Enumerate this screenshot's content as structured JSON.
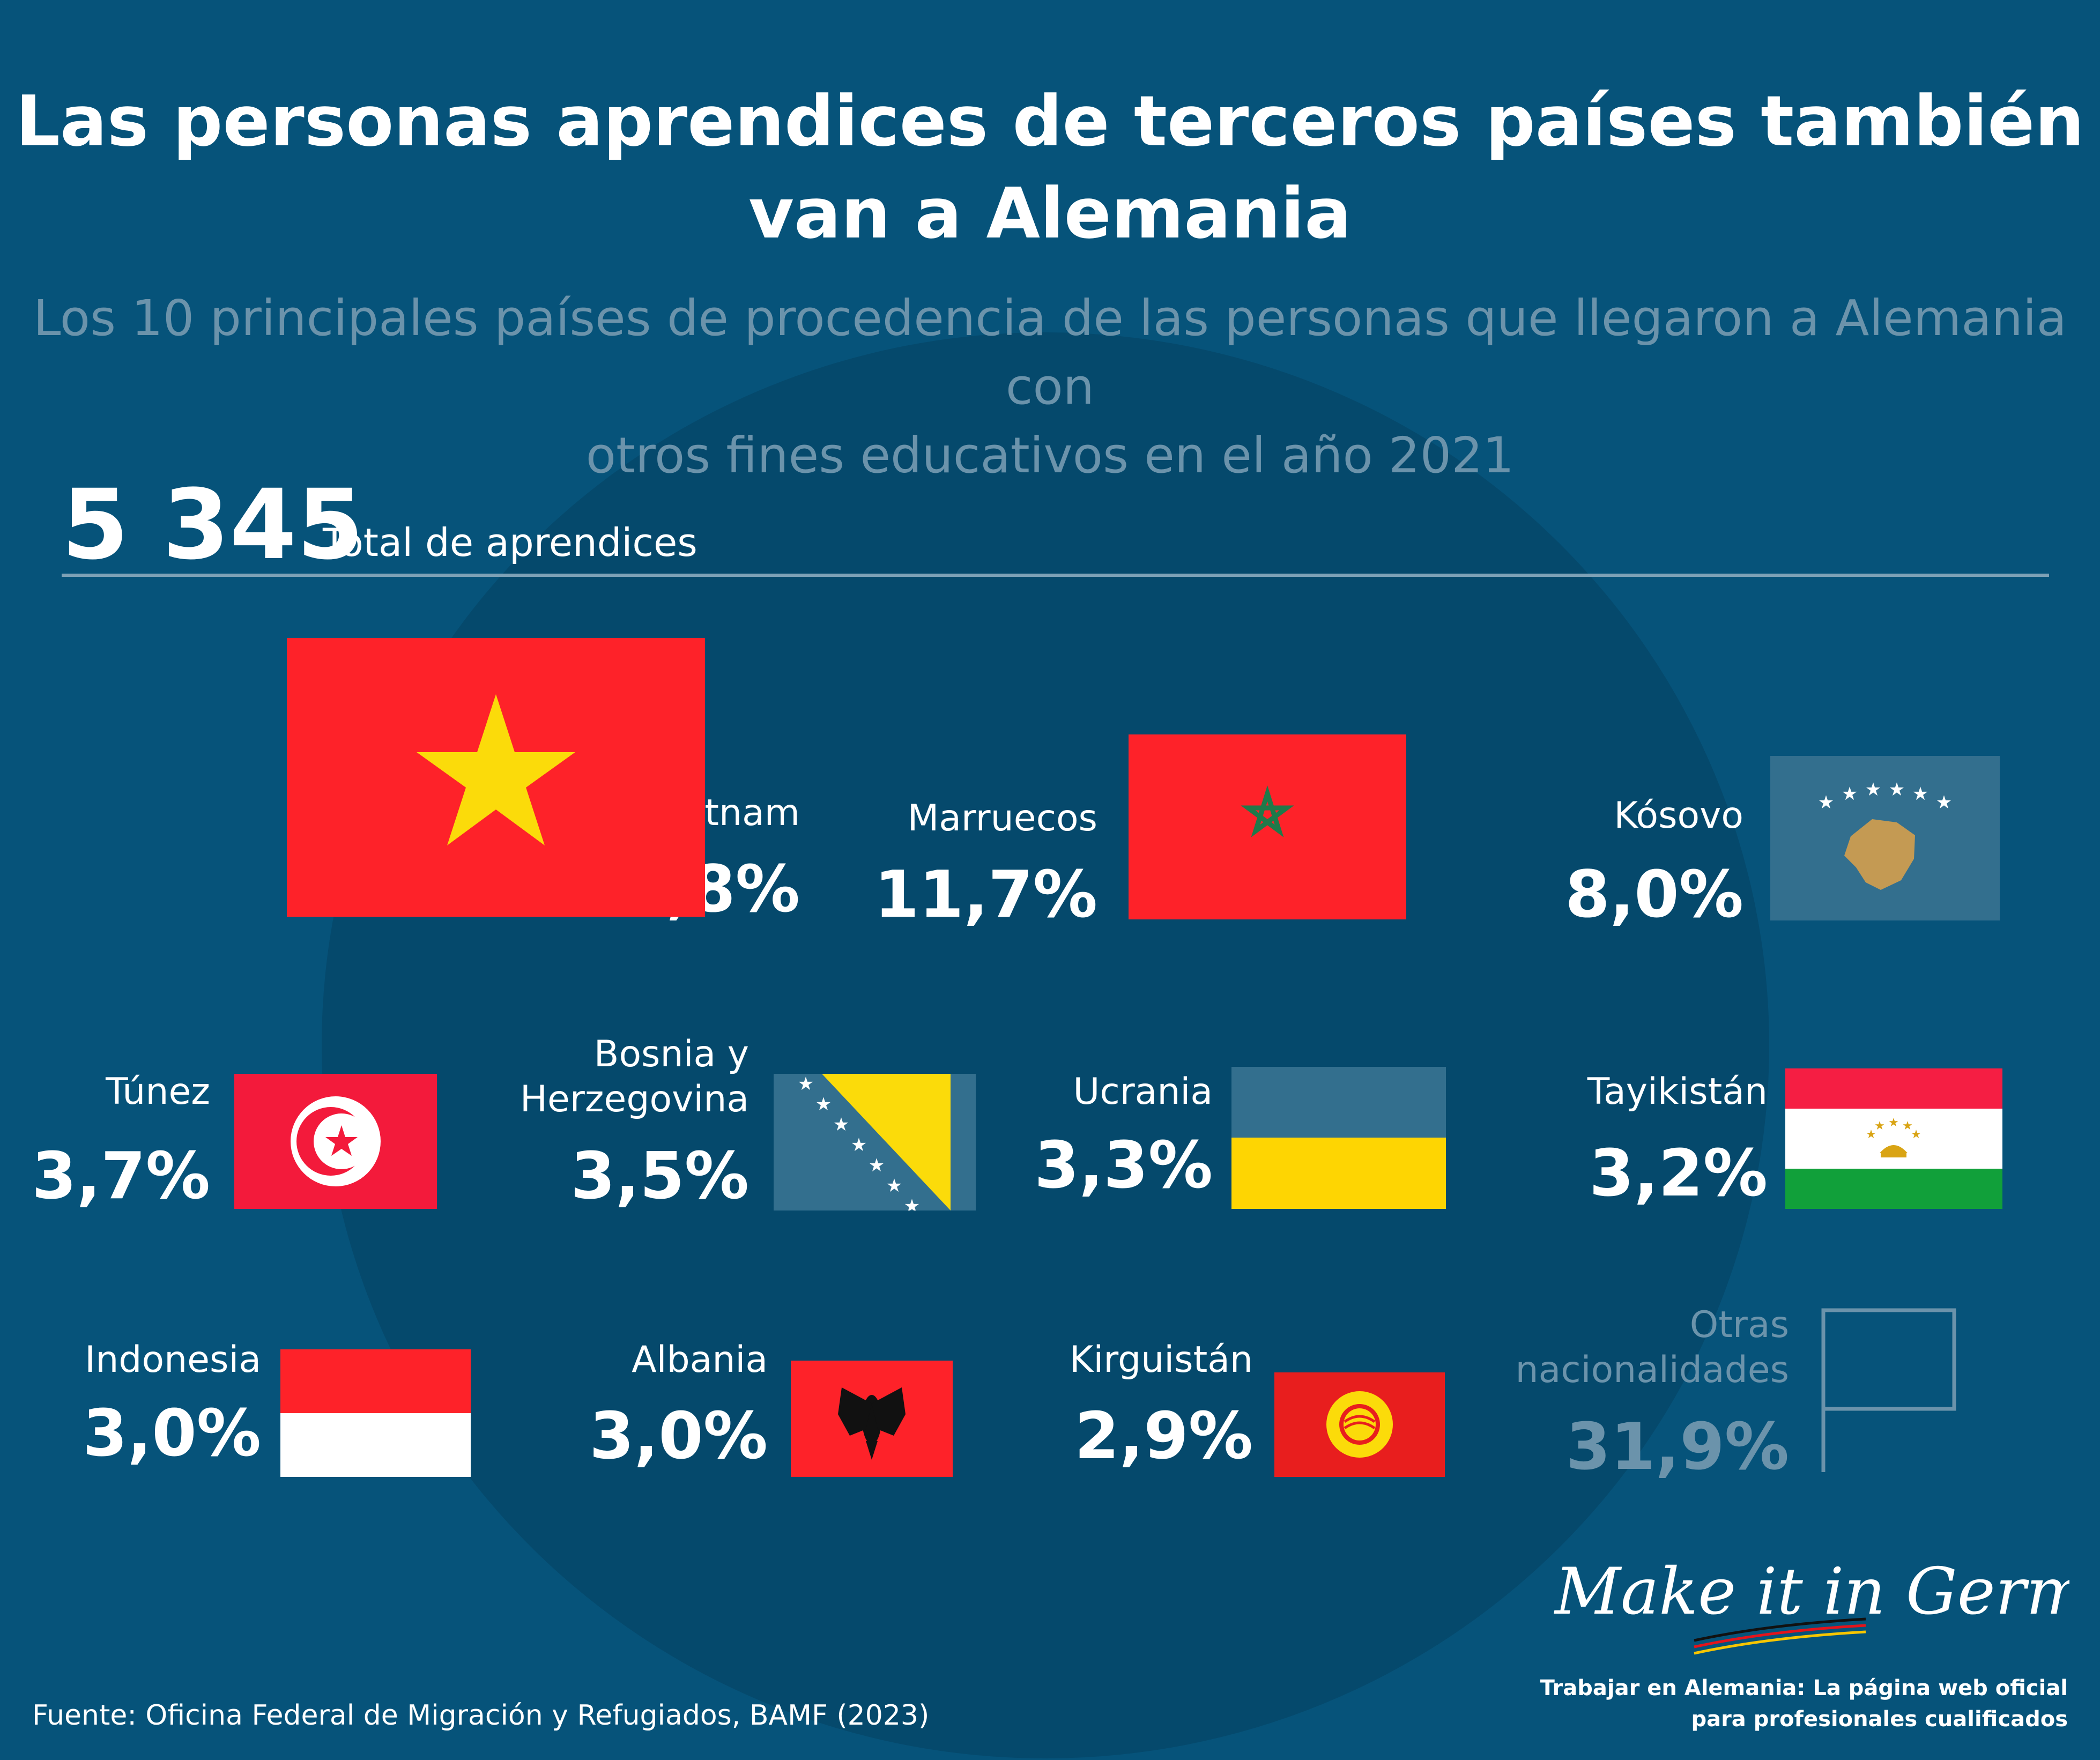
{
  "title_line1": "Las personas aprendices de terceros países también",
  "title_line2": "van a Alemania",
  "subtitle_line1": "Los 10 principales países de procedencia de las personas que llegaron a Alemania con",
  "subtitle_line2": "otros fines educativos en el año 2021",
  "total": {
    "value": "5 345",
    "label": "Total de aprendices"
  },
  "countries": [
    {
      "name": "Vietnam",
      "percent": "25,8%"
    },
    {
      "name": "Marruecos",
      "percent": "11,7%"
    },
    {
      "name": "Kósovo",
      "percent": "8,0%"
    },
    {
      "name": "Túnez",
      "percent": "3,7%"
    },
    {
      "name_line1": "Bosnia y",
      "name_line2": "Herzegovina",
      "percent": "3,5%"
    },
    {
      "name": "Ucrania",
      "percent": "3,3%"
    },
    {
      "name": "Tayikistán",
      "percent": "3,2%"
    },
    {
      "name": "Indonesia",
      "percent": "3,0%"
    },
    {
      "name": "Albania",
      "percent": "3,0%"
    },
    {
      "name": "Kirguistán",
      "percent": "2,9%"
    }
  ],
  "others": {
    "name_line1": "Otras",
    "name_line2": "nacionalidades",
    "percent": "31,9%"
  },
  "chart_data": {
    "type": "table",
    "title": "Las personas aprendices de terceros países también van a Alemania",
    "subtitle": "Los 10 principales países de procedencia de las personas que llegaron a Alemania con otros fines educativos en el año 2021",
    "total": 5345,
    "categories": [
      "Vietnam",
      "Marruecos",
      "Kósovo",
      "Túnez",
      "Bosnia y Herzegovina",
      "Ucrania",
      "Tayikistán",
      "Indonesia",
      "Albania",
      "Kirguistán",
      "Otras nacionalidades"
    ],
    "values": [
      25.8,
      11.7,
      8.0,
      3.7,
      3.5,
      3.3,
      3.2,
      3.0,
      3.0,
      2.9,
      31.9
    ]
  },
  "logo_text": "Make it in Germany",
  "source": "Fuente: Oficina Federal de Migración y Refugiados, BAMF (2023)",
  "tagline_line1": "Trabajar en Alemania: La página web oficial",
  "tagline_line2": "para profesionales cualificados",
  "colors": {
    "background": "#06537a",
    "globe": "#05496c",
    "muted_text": "#6b93ab",
    "flag_red": "#fe2229",
    "star_yellow": "#fbdb0a",
    "kosovo_blue": "#336f8e",
    "kosovo_gold": "#c49a53",
    "ukraine_yellow": "#fed502",
    "tajik_green": "#11a03a"
  }
}
